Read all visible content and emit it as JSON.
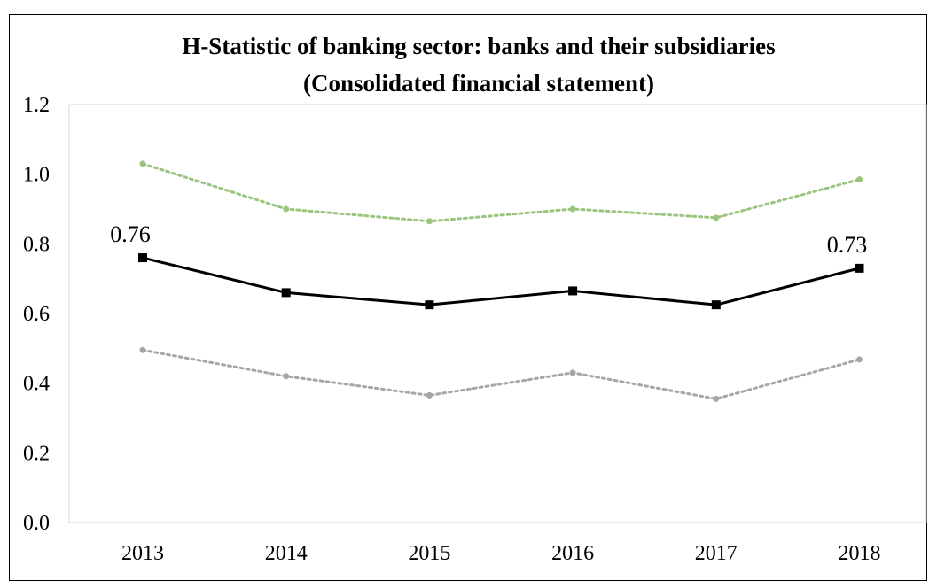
{
  "chart_data": {
    "type": "line",
    "title_lines": [
      "H-Statistic of banking sector: banks and their subsidiaries",
      "(Consolidated financial statement)"
    ],
    "xlabel": "",
    "ylabel": "",
    "categories": [
      "2013",
      "2014",
      "2015",
      "2016",
      "2017",
      "2018"
    ],
    "yticks": [
      "0.0",
      "0.2",
      "0.4",
      "0.6",
      "0.8",
      "1.0",
      "1.2"
    ],
    "ylim": [
      0,
      1.2
    ],
    "grid": false,
    "legend": "none",
    "series": [
      {
        "values": [
          1.03,
          0.9,
          0.865,
          0.9,
          0.875,
          0.985
        ],
        "color": "#9bc57f",
        "style": "dotted",
        "marker": "small-dot"
      },
      {
        "values": [
          0.76,
          0.66,
          0.625,
          0.665,
          0.625,
          0.73
        ],
        "color": "#000000",
        "style": "solid",
        "marker": "square"
      },
      {
        "values": [
          0.495,
          0.42,
          0.365,
          0.43,
          0.355,
          0.468
        ],
        "color": "#a6a6a6",
        "style": "dotted",
        "marker": "small-dot"
      }
    ],
    "data_labels": [
      {
        "series": 1,
        "index": 0,
        "text": "0.76"
      },
      {
        "series": 1,
        "index": 5,
        "text": "0.73"
      }
    ]
  }
}
